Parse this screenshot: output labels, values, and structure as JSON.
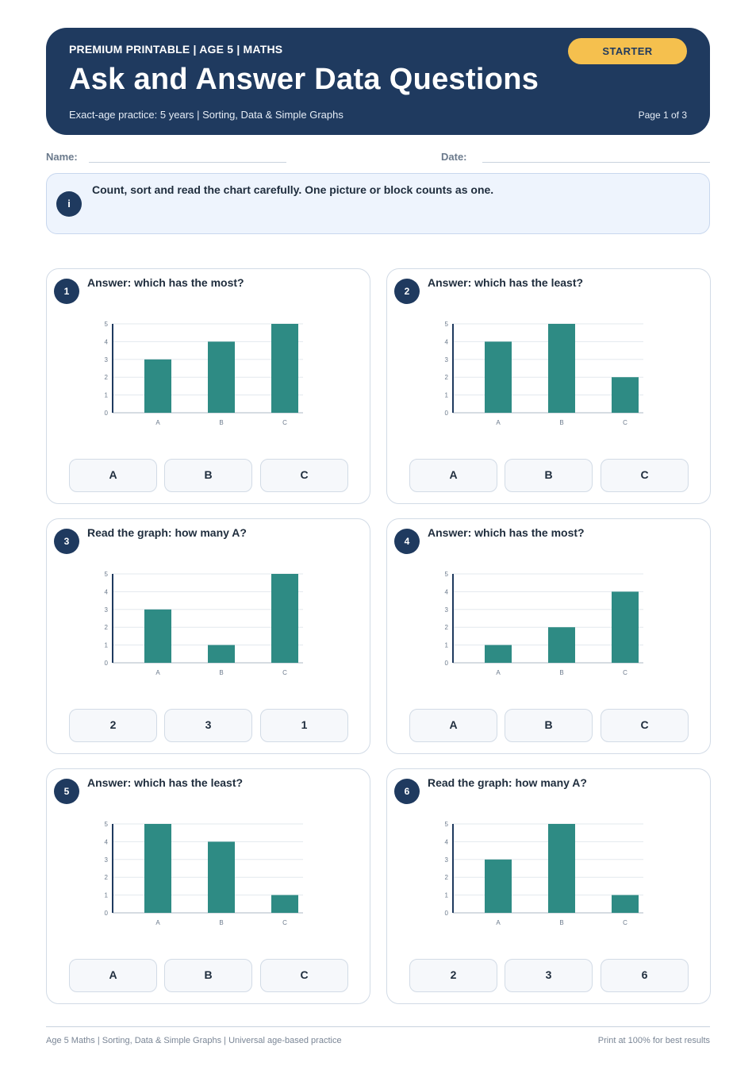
{
  "header": {
    "kicker": "PREMIUM PRINTABLE | AGE 5 | MATHS",
    "title": "Ask and Answer Data Questions",
    "subtitle": "Exact-age practice: 5 years | Sorting, Data & Simple Graphs",
    "page": "Page 1 of 3",
    "badge": "STARTER"
  },
  "fields": {
    "name_label": "Name:",
    "date_label": "Date:"
  },
  "info": {
    "icon": "i",
    "text": "Count, sort and read the chart carefully. One picture or block counts as one."
  },
  "colors": {
    "header_bg": "#1f3a5f",
    "badge": "#f5c04e",
    "bar": "#2e8b84"
  },
  "questions": [
    {
      "number": "1",
      "prompt": "Answer: which has the most?",
      "options": [
        "A",
        "B",
        "C"
      ]
    },
    {
      "number": "2",
      "prompt": "Answer: which has the least?",
      "options": [
        "A",
        "B",
        "C"
      ]
    },
    {
      "number": "3",
      "prompt": "Read the graph: how many A?",
      "options": [
        "2",
        "3",
        "1"
      ]
    },
    {
      "number": "4",
      "prompt": "Answer: which has the most?",
      "options": [
        "A",
        "B",
        "C"
      ]
    },
    {
      "number": "5",
      "prompt": "Answer: which has the least?",
      "options": [
        "A",
        "B",
        "C"
      ]
    },
    {
      "number": "6",
      "prompt": "Read the graph: how many A?",
      "options": [
        "2",
        "3",
        "6"
      ]
    }
  ],
  "chart_data": [
    {
      "type": "bar",
      "categories": [
        "A",
        "B",
        "C"
      ],
      "values": [
        3,
        4,
        5
      ],
      "ylim": [
        0,
        5
      ],
      "yticks": [
        "0",
        "1",
        "2",
        "3",
        "4",
        "5"
      ]
    },
    {
      "type": "bar",
      "categories": [
        "A",
        "B",
        "C"
      ],
      "values": [
        4,
        5,
        2
      ],
      "ylim": [
        0,
        5
      ],
      "yticks": [
        "0",
        "1",
        "2",
        "3",
        "4",
        "5"
      ]
    },
    {
      "type": "bar",
      "categories": [
        "A",
        "B",
        "C"
      ],
      "values": [
        3,
        1,
        5
      ],
      "ylim": [
        0,
        5
      ],
      "yticks": [
        "0",
        "1",
        "2",
        "3",
        "4",
        "5"
      ]
    },
    {
      "type": "bar",
      "categories": [
        "A",
        "B",
        "C"
      ],
      "values": [
        1,
        2,
        4
      ],
      "ylim": [
        0,
        5
      ],
      "yticks": [
        "0",
        "1",
        "2",
        "3",
        "4",
        "5"
      ]
    },
    {
      "type": "bar",
      "categories": [
        "A",
        "B",
        "C"
      ],
      "values": [
        5,
        4,
        1
      ],
      "ylim": [
        0,
        5
      ],
      "yticks": [
        "0",
        "1",
        "2",
        "3",
        "4",
        "5"
      ]
    },
    {
      "type": "bar",
      "categories": [
        "A",
        "B",
        "C"
      ],
      "values": [
        3,
        5,
        1
      ],
      "ylim": [
        0,
        5
      ],
      "yticks": [
        "0",
        "1",
        "2",
        "3",
        "4",
        "5"
      ]
    }
  ],
  "footer": {
    "left": "Age 5 Maths | Sorting, Data & Simple Graphs | Universal age-based practice",
    "right": "Print at 100% for best results"
  }
}
